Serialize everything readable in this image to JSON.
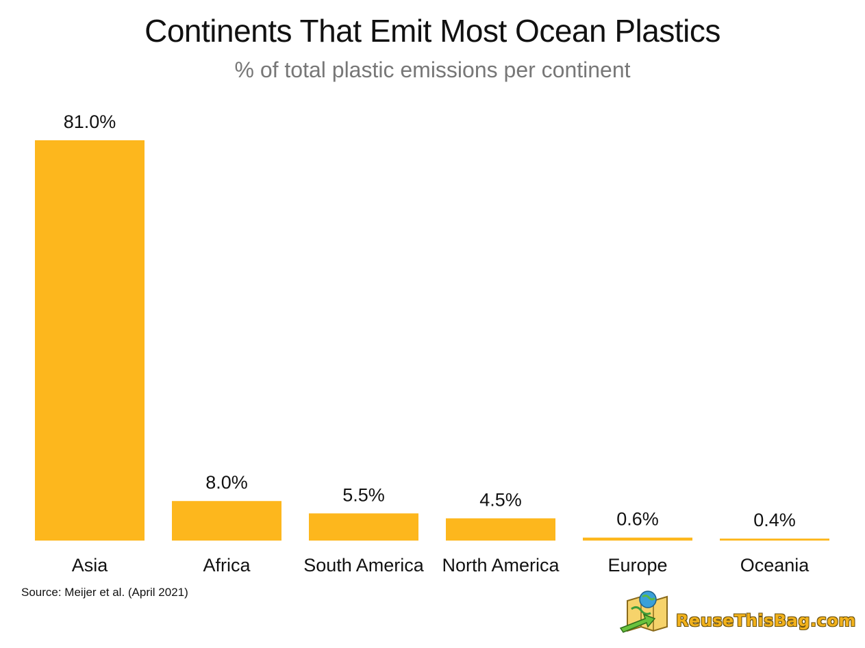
{
  "chart_data": {
    "type": "bar",
    "title": "Continents That Emit Most Ocean Plastics",
    "subtitle": "% of total plastic emissions per continent",
    "categories": [
      "Asia",
      "Africa",
      "South America",
      "North America",
      "Europe",
      "Oceania"
    ],
    "values": [
      81.0,
      8.0,
      5.5,
      4.5,
      0.6,
      0.4
    ],
    "data_labels": [
      "81.0%",
      "8.0%",
      "5.5%",
      "4.5%",
      "0.6%",
      "0.4%"
    ],
    "xlabel": "",
    "ylabel": "",
    "ylim": [
      0,
      81.0
    ],
    "grid": false,
    "legend": "none",
    "bar_color": "#fdb71d"
  },
  "source": "Source: Meijer et al. (April 2021)",
  "brand": {
    "name": "ReuseThisBag.com",
    "icon": "map-bag-logo-icon"
  }
}
